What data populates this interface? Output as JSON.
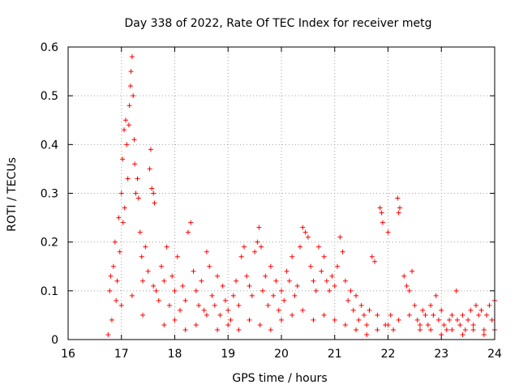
{
  "chart_data": {
    "type": "scatter",
    "title": "Day 338 of 2022, Rate Of TEC Index for receiver metg",
    "xlabel": "GPS time / hours",
    "ylabel": "ROTI / TECUs",
    "xlim": [
      16,
      24
    ],
    "ylim": [
      0,
      0.6
    ],
    "xticks": [
      16,
      17,
      18,
      19,
      20,
      21,
      22,
      23,
      24
    ],
    "yticks": [
      0,
      0.1,
      0.2,
      0.3,
      0.4,
      0.5,
      0.6
    ],
    "xtick_labels": [
      "16",
      "17",
      "18",
      "19",
      "20",
      "21",
      "22",
      "23",
      "24"
    ],
    "ytick_labels": [
      "0",
      "0.1",
      "0.2",
      "0.3",
      "0.4",
      "0.5",
      "0.6"
    ],
    "grid": true,
    "marker": "plus",
    "color": "#ff0000",
    "series": [
      {
        "points": [
          [
            16.75,
            0.01
          ],
          [
            16.78,
            0.1
          ],
          [
            16.8,
            0.13
          ],
          [
            16.82,
            0.04
          ],
          [
            16.85,
            0.15
          ],
          [
            16.88,
            0.2
          ],
          [
            16.9,
            0.08
          ],
          [
            16.92,
            0.12
          ],
          [
            16.95,
            0.25
          ],
          [
            16.97,
            0.18
          ],
          [
            17.0,
            0.3
          ],
          [
            17.02,
            0.37
          ],
          [
            17.03,
            0.24
          ],
          [
            17.05,
            0.43
          ],
          [
            17.06,
            0.27
          ],
          [
            17.08,
            0.45
          ],
          [
            17.1,
            0.4
          ],
          [
            17.12,
            0.33
          ],
          [
            17.14,
            0.44
          ],
          [
            17.15,
            0.48
          ],
          [
            17.17,
            0.52
          ],
          [
            17.18,
            0.55
          ],
          [
            17.2,
            0.58
          ],
          [
            17.22,
            0.5
          ],
          [
            17.24,
            0.41
          ],
          [
            17.25,
            0.36
          ],
          [
            17.27,
            0.3
          ],
          [
            17.3,
            0.33
          ],
          [
            17.32,
            0.29
          ],
          [
            17.35,
            0.22
          ],
          [
            17.38,
            0.17
          ],
          [
            17.4,
            0.12
          ],
          [
            17.45,
            0.19
          ],
          [
            17.5,
            0.14
          ],
          [
            17.53,
            0.35
          ],
          [
            17.55,
            0.39
          ],
          [
            17.57,
            0.31
          ],
          [
            17.6,
            0.3
          ],
          [
            17.62,
            0.28
          ],
          [
            17.65,
            0.1
          ],
          [
            17.7,
            0.08
          ],
          [
            17.75,
            0.15
          ],
          [
            17.8,
            0.12
          ],
          [
            17.85,
            0.19
          ],
          [
            17.9,
            0.07
          ],
          [
            17.95,
            0.13
          ],
          [
            18.0,
            0.1
          ],
          [
            18.05,
            0.17
          ],
          [
            18.1,
            0.06
          ],
          [
            18.15,
            0.11
          ],
          [
            18.2,
            0.08
          ],
          [
            18.25,
            0.22
          ],
          [
            18.3,
            0.24
          ],
          [
            18.35,
            0.14
          ],
          [
            18.4,
            0.1
          ],
          [
            18.45,
            0.07
          ],
          [
            18.5,
            0.12
          ],
          [
            18.55,
            0.06
          ],
          [
            18.6,
            0.18
          ],
          [
            18.65,
            0.15
          ],
          [
            18.7,
            0.09
          ],
          [
            18.75,
            0.07
          ],
          [
            18.8,
            0.13
          ],
          [
            18.85,
            0.05
          ],
          [
            18.9,
            0.11
          ],
          [
            18.95,
            0.08
          ],
          [
            19.0,
            0.06
          ],
          [
            19.05,
            0.04
          ],
          [
            19.1,
            0.09
          ],
          [
            19.15,
            0.12
          ],
          [
            19.2,
            0.07
          ],
          [
            19.25,
            0.17
          ],
          [
            19.3,
            0.19
          ],
          [
            19.35,
            0.13
          ],
          [
            19.4,
            0.11
          ],
          [
            19.45,
            0.09
          ],
          [
            19.5,
            0.18
          ],
          [
            19.55,
            0.2
          ],
          [
            19.58,
            0.23
          ],
          [
            19.62,
            0.19
          ],
          [
            19.65,
            0.1
          ],
          [
            19.7,
            0.13
          ],
          [
            19.75,
            0.07
          ],
          [
            19.8,
            0.15
          ],
          [
            19.85,
            0.09
          ],
          [
            19.9,
            0.12
          ],
          [
            19.95,
            0.06
          ],
          [
            20.0,
            0.1
          ],
          [
            20.05,
            0.08
          ],
          [
            20.1,
            0.14
          ],
          [
            20.15,
            0.12
          ],
          [
            20.2,
            0.17
          ],
          [
            20.25,
            0.09
          ],
          [
            20.3,
            0.11
          ],
          [
            20.35,
            0.19
          ],
          [
            20.4,
            0.23
          ],
          [
            20.45,
            0.22
          ],
          [
            20.5,
            0.21
          ],
          [
            20.55,
            0.15
          ],
          [
            20.6,
            0.12
          ],
          [
            20.65,
            0.1
          ],
          [
            20.7,
            0.19
          ],
          [
            20.75,
            0.14
          ],
          [
            20.8,
            0.17
          ],
          [
            20.85,
            0.12
          ],
          [
            20.9,
            0.1
          ],
          [
            20.95,
            0.13
          ],
          [
            21.0,
            0.11
          ],
          [
            21.05,
            0.15
          ],
          [
            21.1,
            0.21
          ],
          [
            21.15,
            0.18
          ],
          [
            21.2,
            0.12
          ],
          [
            21.25,
            0.08
          ],
          [
            21.3,
            0.1
          ],
          [
            21.35,
            0.06
          ],
          [
            21.4,
            0.09
          ],
          [
            21.45,
            0.04
          ],
          [
            21.5,
            0.07
          ],
          [
            21.55,
            0.05
          ],
          [
            21.6,
            0.03
          ],
          [
            21.65,
            0.06
          ],
          [
            21.7,
            0.17
          ],
          [
            21.75,
            0.16
          ],
          [
            21.8,
            0.05
          ],
          [
            21.85,
            0.27
          ],
          [
            21.88,
            0.26
          ],
          [
            21.9,
            0.24
          ],
          [
            21.95,
            0.03
          ],
          [
            22.0,
            0.22
          ],
          [
            22.05,
            0.05
          ],
          [
            22.1,
            0.02
          ],
          [
            22.18,
            0.29
          ],
          [
            22.2,
            0.26
          ],
          [
            22.22,
            0.27
          ],
          [
            22.3,
            0.13
          ],
          [
            22.35,
            0.11
          ],
          [
            22.4,
            0.1
          ],
          [
            22.45,
            0.14
          ],
          [
            22.5,
            0.07
          ],
          [
            22.55,
            0.04
          ],
          [
            22.6,
            0.02
          ],
          [
            22.65,
            0.06
          ],
          [
            22.7,
            0.05
          ],
          [
            22.75,
            0.03
          ],
          [
            22.8,
            0.07
          ],
          [
            22.85,
            0.05
          ],
          [
            22.9,
            0.09
          ],
          [
            22.95,
            0.04
          ],
          [
            23.0,
            0.06
          ],
          [
            23.05,
            0.03
          ],
          [
            23.1,
            0.02
          ],
          [
            23.15,
            0.04
          ],
          [
            23.2,
            0.05
          ],
          [
            23.28,
            0.1
          ],
          [
            23.3,
            0.04
          ],
          [
            23.35,
            0.03
          ],
          [
            23.4,
            0.05
          ],
          [
            23.45,
            0.02
          ],
          [
            23.5,
            0.04
          ],
          [
            23.55,
            0.06
          ],
          [
            23.6,
            0.03
          ],
          [
            23.65,
            0.07
          ],
          [
            23.7,
            0.05
          ],
          [
            23.75,
            0.06
          ],
          [
            23.8,
            0.02
          ],
          [
            23.85,
            0.05
          ],
          [
            23.9,
            0.07
          ],
          [
            23.95,
            0.04
          ],
          [
            24.0,
            0.08
          ],
          [
            24.0,
            0.02
          ],
          [
            17.0,
            0.07
          ],
          [
            17.2,
            0.09
          ],
          [
            17.4,
            0.05
          ],
          [
            17.6,
            0.11
          ],
          [
            17.8,
            0.03
          ],
          [
            18.0,
            0.04
          ],
          [
            18.2,
            0.02
          ],
          [
            18.4,
            0.03
          ],
          [
            18.6,
            0.05
          ],
          [
            18.8,
            0.02
          ],
          [
            19.0,
            0.03
          ],
          [
            19.2,
            0.02
          ],
          [
            19.4,
            0.04
          ],
          [
            19.6,
            0.03
          ],
          [
            19.8,
            0.02
          ],
          [
            20.0,
            0.04
          ],
          [
            20.2,
            0.05
          ],
          [
            20.4,
            0.06
          ],
          [
            20.6,
            0.04
          ],
          [
            20.8,
            0.05
          ],
          [
            21.0,
            0.04
          ],
          [
            21.2,
            0.03
          ],
          [
            21.4,
            0.02
          ],
          [
            21.6,
            0.01
          ],
          [
            21.8,
            0.02
          ],
          [
            22.0,
            0.03
          ],
          [
            22.2,
            0.04
          ],
          [
            22.4,
            0.05
          ],
          [
            22.6,
            0.03
          ],
          [
            22.8,
            0.02
          ],
          [
            23.0,
            0.01
          ],
          [
            23.2,
            0.02
          ],
          [
            23.4,
            0.01
          ],
          [
            23.6,
            0.02
          ],
          [
            23.8,
            0.01
          ]
        ]
      }
    ]
  }
}
